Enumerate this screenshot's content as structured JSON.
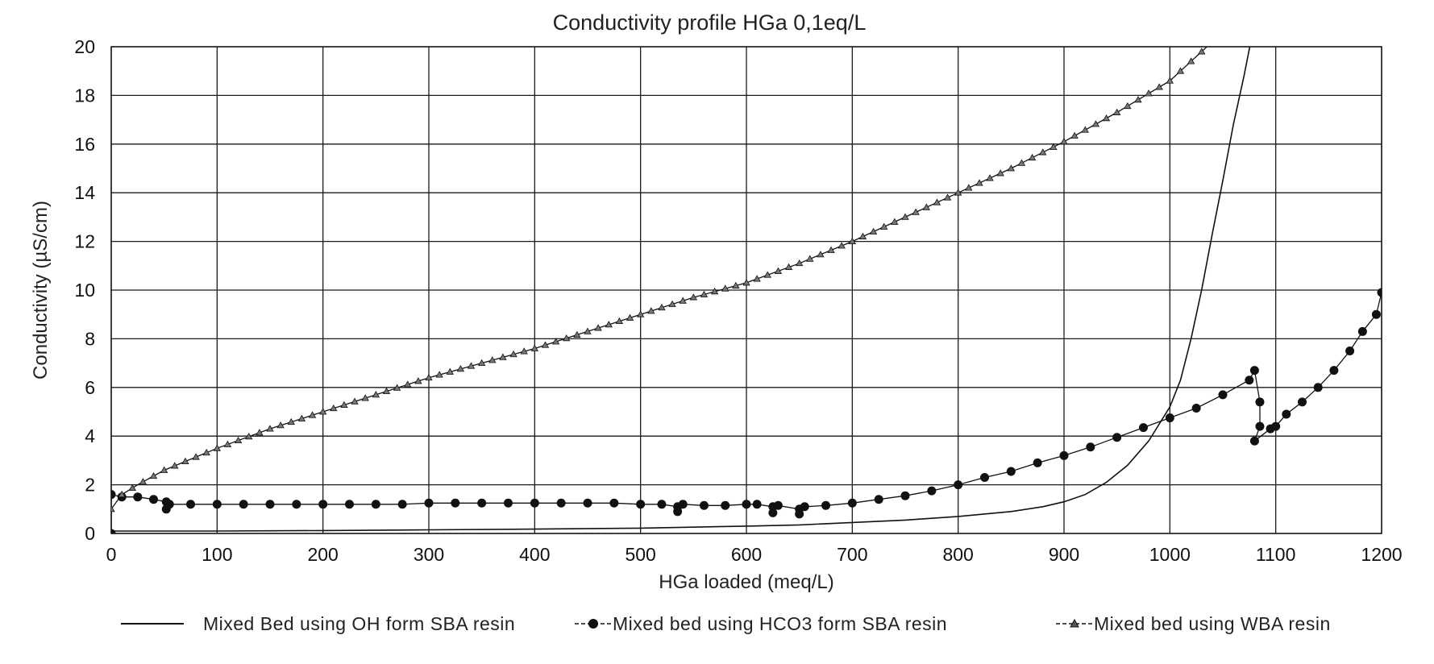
{
  "chart_data": {
    "type": "line",
    "title": "Conductivity profile HGa 0,1eq/L",
    "xlabel": "HGa loaded (meq/L)",
    "ylabel": "Conductivity (µS/cm)",
    "xlim": [
      0,
      1200
    ],
    "ylim": [
      0,
      20
    ],
    "x_ticks": [
      "0",
      "100",
      "200",
      "300",
      "400",
      "500",
      "600",
      "700",
      "800",
      "900",
      "1000",
      "1100",
      "1200"
    ],
    "y_ticks": [
      "0",
      "2",
      "4",
      "6",
      "8",
      "10",
      "12",
      "14",
      "16",
      "18",
      "20"
    ],
    "grid": true,
    "legend_position": "bottom",
    "series": [
      {
        "name": "Mixed Bed using OH form SBA resin",
        "marker": "none",
        "color": "#111111",
        "points": [
          [
            0,
            0.1
          ],
          [
            100,
            0.1
          ],
          [
            200,
            0.12
          ],
          [
            300,
            0.15
          ],
          [
            400,
            0.18
          ],
          [
            500,
            0.22
          ],
          [
            600,
            0.3
          ],
          [
            650,
            0.35
          ],
          [
            700,
            0.45
          ],
          [
            750,
            0.55
          ],
          [
            800,
            0.7
          ],
          [
            850,
            0.9
          ],
          [
            880,
            1.1
          ],
          [
            900,
            1.3
          ],
          [
            920,
            1.6
          ],
          [
            940,
            2.1
          ],
          [
            960,
            2.8
          ],
          [
            980,
            3.8
          ],
          [
            1000,
            5.2
          ],
          [
            1010,
            6.3
          ],
          [
            1020,
            8.0
          ],
          [
            1030,
            10.0
          ],
          [
            1040,
            12.3
          ],
          [
            1050,
            14.5
          ],
          [
            1060,
            16.8
          ],
          [
            1070,
            18.8
          ],
          [
            1080,
            21.0
          ]
        ]
      },
      {
        "name": "Mixed bed using HCO3 form SBA resin",
        "marker": "circle",
        "color": "#111111",
        "points": [
          [
            0,
            0
          ],
          [
            0,
            1.6
          ],
          [
            10,
            1.5
          ],
          [
            25,
            1.5
          ],
          [
            40,
            1.4
          ],
          [
            52,
            1.3
          ],
          [
            52,
            1.0
          ],
          [
            55,
            1.2
          ],
          [
            75,
            1.2
          ],
          [
            100,
            1.2
          ],
          [
            125,
            1.2
          ],
          [
            150,
            1.2
          ],
          [
            175,
            1.2
          ],
          [
            200,
            1.2
          ],
          [
            225,
            1.2
          ],
          [
            250,
            1.2
          ],
          [
            275,
            1.2
          ],
          [
            300,
            1.25
          ],
          [
            325,
            1.25
          ],
          [
            350,
            1.25
          ],
          [
            375,
            1.25
          ],
          [
            400,
            1.25
          ],
          [
            425,
            1.25
          ],
          [
            450,
            1.25
          ],
          [
            475,
            1.25
          ],
          [
            500,
            1.2
          ],
          [
            520,
            1.2
          ],
          [
            535,
            1.1
          ],
          [
            535,
            0.9
          ],
          [
            540,
            1.2
          ],
          [
            560,
            1.15
          ],
          [
            580,
            1.15
          ],
          [
            600,
            1.2
          ],
          [
            610,
            1.2
          ],
          [
            625,
            1.1
          ],
          [
            625,
            0.85
          ],
          [
            630,
            1.15
          ],
          [
            650,
            1.0
          ],
          [
            650,
            0.8
          ],
          [
            655,
            1.1
          ],
          [
            675,
            1.15
          ],
          [
            700,
            1.25
          ],
          [
            725,
            1.4
          ],
          [
            750,
            1.55
          ],
          [
            775,
            1.75
          ],
          [
            800,
            2.0
          ],
          [
            825,
            2.3
          ],
          [
            850,
            2.55
          ],
          [
            875,
            2.9
          ],
          [
            900,
            3.2
          ],
          [
            925,
            3.55
          ],
          [
            950,
            3.95
          ],
          [
            975,
            4.35
          ],
          [
            1000,
            4.75
          ],
          [
            1025,
            5.15
          ],
          [
            1050,
            5.7
          ],
          [
            1075,
            6.3
          ],
          [
            1080,
            6.7
          ],
          [
            1085,
            5.4
          ],
          [
            1085,
            4.4
          ],
          [
            1080,
            3.8
          ],
          [
            1095,
            4.3
          ],
          [
            1100,
            4.4
          ],
          [
            1110,
            4.9
          ],
          [
            1125,
            5.4
          ],
          [
            1140,
            6.0
          ],
          [
            1155,
            6.7
          ],
          [
            1170,
            7.5
          ],
          [
            1182,
            8.3
          ],
          [
            1195,
            9.0
          ],
          [
            1200,
            9.9
          ]
        ]
      },
      {
        "name": "Mixed bed using WBA resin",
        "marker": "triangle",
        "color": "#111111",
        "points": [
          [
            0,
            1.0
          ],
          [
            10,
            1.6
          ],
          [
            25,
            2.0
          ],
          [
            50,
            2.6
          ],
          [
            100,
            3.5
          ],
          [
            150,
            4.3
          ],
          [
            200,
            5.0
          ],
          [
            250,
            5.7
          ],
          [
            300,
            6.4
          ],
          [
            350,
            7.0
          ],
          [
            400,
            7.6
          ],
          [
            450,
            8.3
          ],
          [
            500,
            9.0
          ],
          [
            550,
            9.7
          ],
          [
            600,
            10.3
          ],
          [
            650,
            11.1
          ],
          [
            700,
            12.0
          ],
          [
            750,
            13.0
          ],
          [
            800,
            14.0
          ],
          [
            850,
            15.0
          ],
          [
            900,
            16.1
          ],
          [
            950,
            17.3
          ],
          [
            1000,
            18.6
          ],
          [
            1035,
            20.0
          ]
        ]
      }
    ]
  }
}
